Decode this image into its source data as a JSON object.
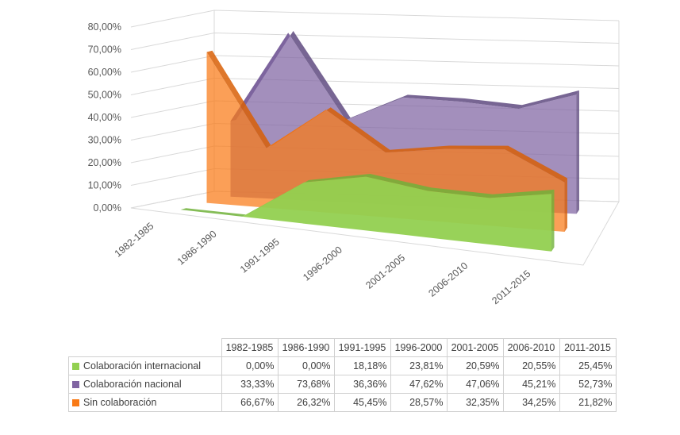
{
  "chart_data": {
    "type": "area",
    "categories": [
      "1982-1985",
      "1986-1990",
      "1991-1995",
      "1996-2000",
      "2001-2005",
      "2006-2010",
      "2011-2015"
    ],
    "series": [
      {
        "name": "Colaboración internacional",
        "color": "#92D050",
        "values": [
          0.0,
          0.0,
          18.18,
          23.81,
          20.59,
          20.55,
          25.45
        ],
        "labels": [
          "0,00%",
          "0,00%",
          "18,18%",
          "23,81%",
          "20,59%",
          "20,55%",
          "25,45%"
        ]
      },
      {
        "name": "Colaboración nacional",
        "color": "#8064A2",
        "values": [
          33.33,
          73.68,
          36.36,
          47.62,
          47.06,
          45.21,
          52.73
        ],
        "labels": [
          "33,33%",
          "73,68%",
          "36,36%",
          "47,62%",
          "47,06%",
          "45,21%",
          "52,73%"
        ]
      },
      {
        "name": "Sin colaboración",
        "color": "#F97A16",
        "values": [
          66.67,
          26.32,
          45.45,
          28.57,
          32.35,
          34.25,
          21.82
        ],
        "labels": [
          "66,67%",
          "26,32%",
          "45,45%",
          "28,57%",
          "32,35%",
          "34,25%",
          "21,82%"
        ]
      }
    ],
    "y_tick_labels": [
      "0,00%",
      "10,00%",
      "20,00%",
      "30,00%",
      "40,00%",
      "50,00%",
      "60,00%",
      "70,00%",
      "80,00%"
    ],
    "ylim": [
      0,
      80
    ],
    "grid": true,
    "legend": "data-table-below"
  }
}
